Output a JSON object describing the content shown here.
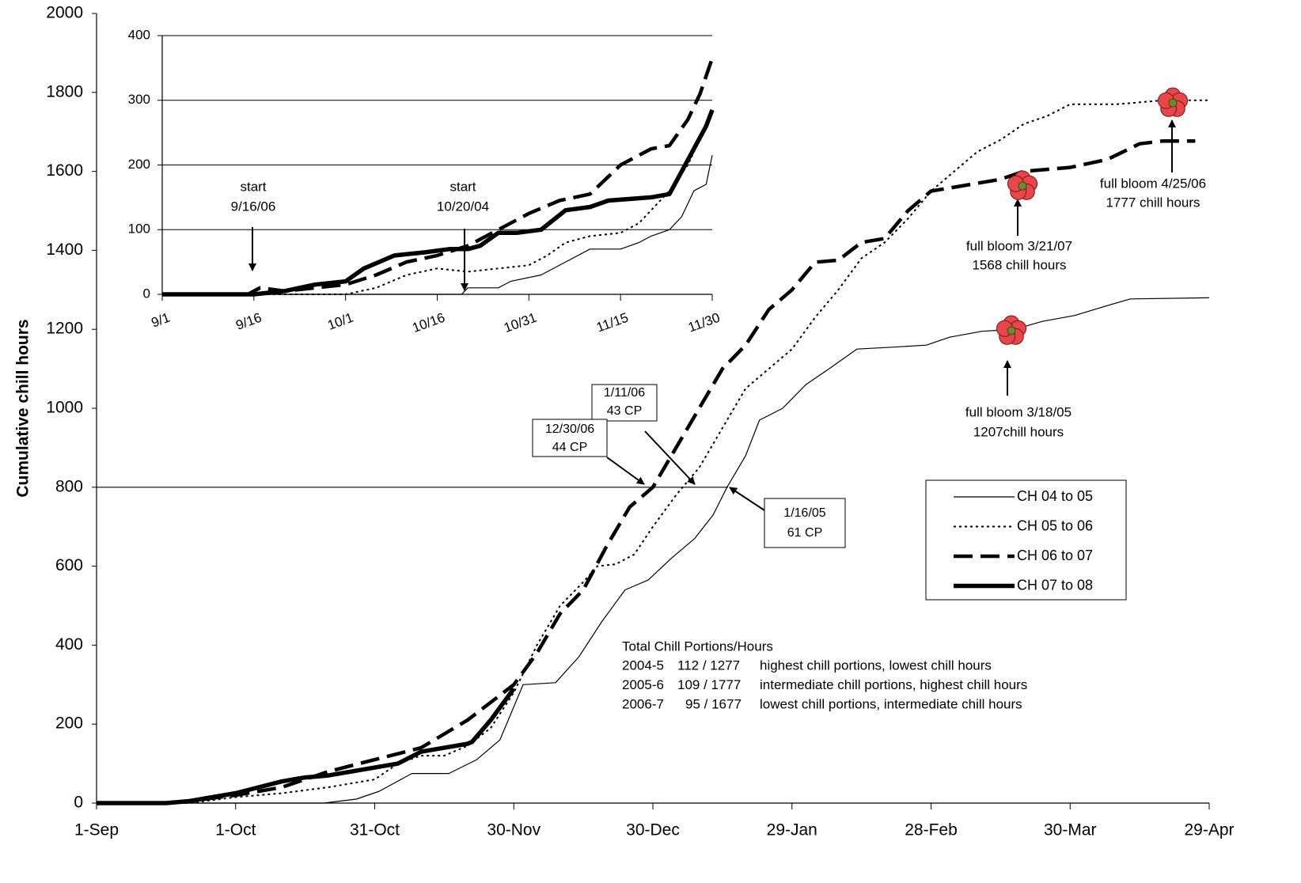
{
  "chart_data": [
    {
      "type": "line",
      "y_label": "Cumulative chill hours",
      "xlim": [
        0,
        240
      ],
      "xticks": [
        {
          "value": 0,
          "label": "1-Sep"
        },
        {
          "value": 30,
          "label": "1-Oct"
        },
        {
          "value": 60,
          "label": "31-Oct"
        },
        {
          "value": 90,
          "label": "30-Nov"
        },
        {
          "value": 120,
          "label": "30-Dec"
        },
        {
          "value": 150,
          "label": "29-Jan"
        },
        {
          "value": 180,
          "label": "28-Feb"
        },
        {
          "value": 210,
          "label": "30-Mar"
        },
        {
          "value": 240,
          "label": "29-Apr"
        }
      ],
      "ylim": [
        0,
        2000
      ],
      "yticks": [
        0,
        200,
        400,
        600,
        800,
        1000,
        1200,
        1400,
        1600,
        1800,
        2000
      ],
      "hline": 800,
      "series": [
        {
          "name": "CH 04 to 05",
          "color": "#000000",
          "style": "thin",
          "x": [
            0,
            49,
            56,
            61,
            68,
            76,
            82,
            87,
            92,
            99,
            104,
            109,
            114,
            119,
            124,
            129,
            133,
            136,
            140,
            143,
            148,
            153,
            158,
            164,
            172,
            179,
            184,
            191,
            198,
            204,
            211,
            218,
            223,
            240
          ],
          "values": [
            0,
            0,
            10,
            30,
            75,
            75,
            110,
            160,
            300,
            305,
            370,
            460,
            540,
            565,
            620,
            670,
            730,
            800,
            880,
            970,
            1000,
            1060,
            1100,
            1150,
            1155,
            1160,
            1180,
            1195,
            1200,
            1220,
            1235,
            1260,
            1277,
            1280
          ]
        },
        {
          "name": "CH 05 to 06",
          "color": "#000000",
          "style": "dotted",
          "x": [
            0,
            20,
            30,
            40,
            50,
            60,
            65,
            70,
            75,
            80,
            85,
            90,
            95,
            100,
            105,
            108,
            112,
            116,
            120,
            125,
            130,
            135,
            140,
            145,
            150,
            155,
            160,
            165,
            170,
            175,
            180,
            185,
            190,
            195,
            200,
            205,
            210,
            220,
            230,
            240
          ],
          "values": [
            0,
            0,
            15,
            25,
            40,
            60,
            100,
            120,
            120,
            145,
            190,
            280,
            400,
            500,
            560,
            600,
            605,
            630,
            700,
            780,
            850,
            950,
            1050,
            1100,
            1150,
            1230,
            1300,
            1380,
            1420,
            1480,
            1550,
            1600,
            1650,
            1680,
            1720,
            1740,
            1770,
            1770,
            1780,
            1780
          ]
        },
        {
          "name": "CH 06 to 07",
          "color": "#000000",
          "style": "dashed",
          "x": [
            0,
            15,
            20,
            30,
            40,
            50,
            60,
            70,
            80,
            90,
            95,
            100,
            105,
            110,
            115,
            120,
            125,
            130,
            135,
            140,
            145,
            150,
            155,
            160,
            165,
            170,
            175,
            180,
            185,
            190,
            195,
            200,
            210,
            218,
            225,
            230,
            237
          ],
          "values": [
            0,
            0,
            5,
            20,
            40,
            80,
            110,
            140,
            210,
            300,
            380,
            480,
            540,
            650,
            750,
            800,
            900,
            1000,
            1100,
            1160,
            1250,
            1300,
            1370,
            1375,
            1420,
            1430,
            1500,
            1550,
            1560,
            1570,
            1580,
            1600,
            1610,
            1630,
            1670,
            1677,
            1677
          ]
        },
        {
          "name": "CH 07 to 08",
          "color": "#000000",
          "style": "thick",
          "x": [
            0,
            15,
            20,
            25,
            30,
            35,
            40,
            45,
            50,
            55,
            60,
            65,
            70,
            75,
            80,
            81,
            85,
            90
          ],
          "values": [
            0,
            0,
            5,
            15,
            25,
            40,
            55,
            65,
            70,
            80,
            90,
            100,
            130,
            140,
            150,
            155,
            210,
            290
          ]
        }
      ],
      "annotations": [
        {
          "lines": [
            "1/11/06",
            "43 CP"
          ],
          "box": true
        },
        {
          "lines": [
            "12/30/06",
            "44 CP"
          ],
          "box": true
        },
        {
          "lines": [
            "1/16/05",
            "61 CP"
          ],
          "box": true
        },
        {
          "lines": [
            "full bloom 3/21/07",
            "1568 chill hours"
          ],
          "box": false
        },
        {
          "lines": [
            "full bloom 4/25/06",
            "1777 chill hours"
          ],
          "box": false
        },
        {
          "lines": [
            "full bloom 3/18/05",
            "1207chill hours"
          ],
          "box": false
        }
      ],
      "summary": {
        "title": "Total Chill Portions/Hours",
        "rows": [
          [
            "2004-5",
            "112 / 1277",
            "highest chill portions, lowest chill hours"
          ],
          [
            "2005-6",
            "109 / 1777",
            "intermediate chill portions, highest chill hours"
          ],
          [
            "2006-7",
            "95 / 1677",
            "lowest chill portions, intermediate chill hours"
          ]
        ]
      }
    },
    {
      "type": "line",
      "xlim": [
        0,
        90
      ],
      "xticks": [
        {
          "value": 0,
          "label": "9/1"
        },
        {
          "value": 15,
          "label": "9/16"
        },
        {
          "value": 30,
          "label": "10/1"
        },
        {
          "value": 45,
          "label": "10/16"
        },
        {
          "value": 60,
          "label": "10/31"
        },
        {
          "value": 75,
          "label": "11/15"
        },
        {
          "value": 90,
          "label": "11/30"
        }
      ],
      "ylim": [
        0,
        400
      ],
      "yticks": [
        0,
        100,
        200,
        300,
        400
      ],
      "grid": true,
      "series": [
        {
          "color": "#000000",
          "style": "thin",
          "x": [
            0,
            49,
            50,
            55,
            57,
            62,
            66,
            70,
            75,
            78,
            80,
            83,
            85,
            87,
            89,
            90
          ],
          "values": [
            0,
            0,
            10,
            10,
            20,
            30,
            50,
            70,
            70,
            80,
            90,
            100,
            120,
            160,
            170,
            215
          ]
        },
        {
          "color": "#000000",
          "style": "dotted",
          "x": [
            0,
            30,
            35,
            40,
            45,
            50,
            55,
            60,
            63,
            66,
            70,
            75,
            78,
            80,
            83,
            86,
            88,
            90
          ],
          "values": [
            0,
            0,
            10,
            30,
            40,
            35,
            40,
            45,
            60,
            80,
            90,
            95,
            110,
            130,
            160,
            200,
            240,
            285
          ]
        },
        {
          "color": "#000000",
          "style": "dashed",
          "x": [
            0,
            14,
            16,
            20,
            25,
            30,
            35,
            40,
            45,
            50,
            55,
            60,
            65,
            70,
            75,
            80,
            83,
            86,
            88,
            90
          ],
          "values": [
            0,
            0,
            10,
            5,
            10,
            15,
            30,
            50,
            60,
            75,
            100,
            125,
            145,
            155,
            200,
            225,
            230,
            270,
            310,
            365
          ]
        },
        {
          "color": "#000000",
          "style": "thick",
          "x": [
            0,
            15,
            20,
            25,
            30,
            33,
            38,
            43,
            47,
            50,
            52,
            55,
            58,
            62,
            66,
            70,
            73,
            80,
            83,
            85,
            87,
            89,
            90
          ],
          "values": [
            0,
            0,
            5,
            15,
            20,
            40,
            60,
            65,
            70,
            70,
            75,
            95,
            95,
            100,
            130,
            135,
            145,
            150,
            155,
            190,
            225,
            260,
            285
          ]
        }
      ],
      "annotations": [
        {
          "lines": [
            "start",
            "9/16/06"
          ]
        },
        {
          "lines": [
            "start",
            "10/20/04"
          ]
        }
      ]
    }
  ]
}
